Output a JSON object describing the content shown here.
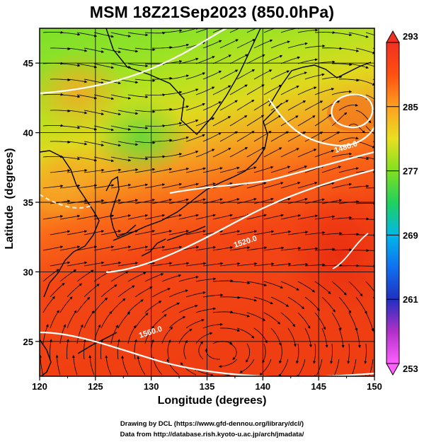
{
  "title": "MSM 18Z21Sep2023 (850.0hPa)",
  "map": {
    "xlabel": "Longitude (degrees)",
    "ylabel": "Latitude  (degrees)",
    "lon_range": [
      120,
      150
    ],
    "lat_range": [
      22.5,
      47.5
    ],
    "lon_ticks": [
      "120",
      "125",
      "130",
      "135",
      "140",
      "145",
      "150"
    ],
    "lat_ticks": [
      "25",
      "30",
      "35",
      "40",
      "45"
    ],
    "grid": true,
    "field": "temperature shaded, streamlines, geopotential height contours",
    "contours": [
      {
        "label": "1480.0",
        "lon": 147.5,
        "lat": 38.8
      },
      {
        "label": "1520.0",
        "lon": 138.5,
        "lat": 32.0
      },
      {
        "label": "1560.0",
        "lon": 130.0,
        "lat": 25.5
      }
    ]
  },
  "colorbar": {
    "tick_labels": [
      "293",
      "285",
      "277",
      "269",
      "261",
      "253"
    ],
    "min": 253,
    "max": 293,
    "colors": [
      "#ff60ff",
      "#b030c8",
      "#2030c0",
      "#1070f0",
      "#00b8e8",
      "#20d060",
      "#80e020",
      "#e8e020",
      "#ffa020",
      "#ff5010",
      "#f03020"
    ]
  },
  "credits": {
    "line1": "Drawing by DCL (https://www.gfd-dennou.org/library/dcl/)",
    "line2": "Data from http://database.rish.kyoto-u.ac.jp/arch/jmadata/"
  }
}
